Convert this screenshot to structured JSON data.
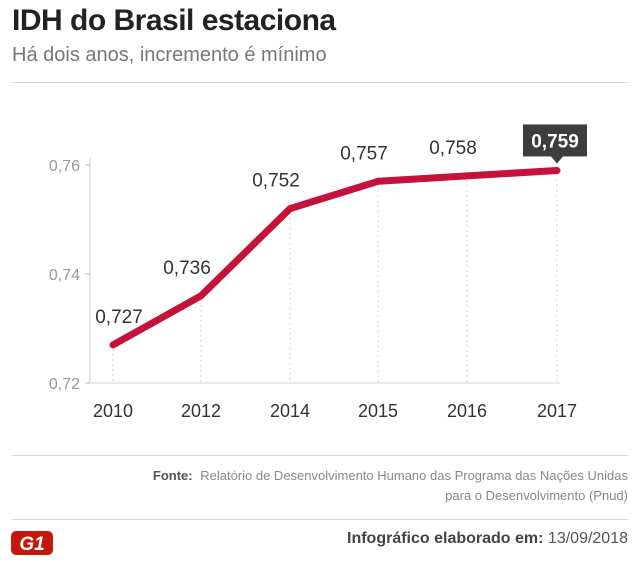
{
  "header": {
    "title": "IDH do Brasil estaciona",
    "subtitle": "Há dois anos, incremento é mínimo"
  },
  "chart_data": {
    "type": "line",
    "title": "IDH do Brasil estaciona",
    "subtitle": "Há dois anos, incremento é mínimo",
    "x": [
      "2010",
      "2012",
      "2014",
      "2015",
      "2016",
      "2017"
    ],
    "series": [
      {
        "name": "",
        "values": [
          0.727,
          0.736,
          0.752,
          0.757,
          0.758,
          0.759
        ],
        "labels": [
          "0,727",
          "0,736",
          "0,752",
          "0,757",
          "0,758",
          "0,759"
        ]
      }
    ],
    "y_ticks": [
      "0,72",
      "0,74",
      "0,76"
    ],
    "y_tick_values": [
      0.72,
      0.74,
      0.76
    ],
    "ylim": [
      0.72,
      0.76
    ],
    "xlabel": "",
    "ylabel": "",
    "grid": "vertical dotted lines at each year",
    "highlight_last_point": true,
    "line_color": "#c4123a",
    "highlight_bg": "#3d3d3d"
  },
  "footer": {
    "source_label": "Fonte:",
    "source_line1": "Relatório de Desenvolvimento Humano das Programa das Nações Unidas",
    "source_line2": "para o Desenvolvimento (Pnud)",
    "credit_label": "Infográfico elaborado em:",
    "credit_date": "13/09/2018",
    "logo_text": "G1",
    "logo_color": "#c4170c"
  }
}
